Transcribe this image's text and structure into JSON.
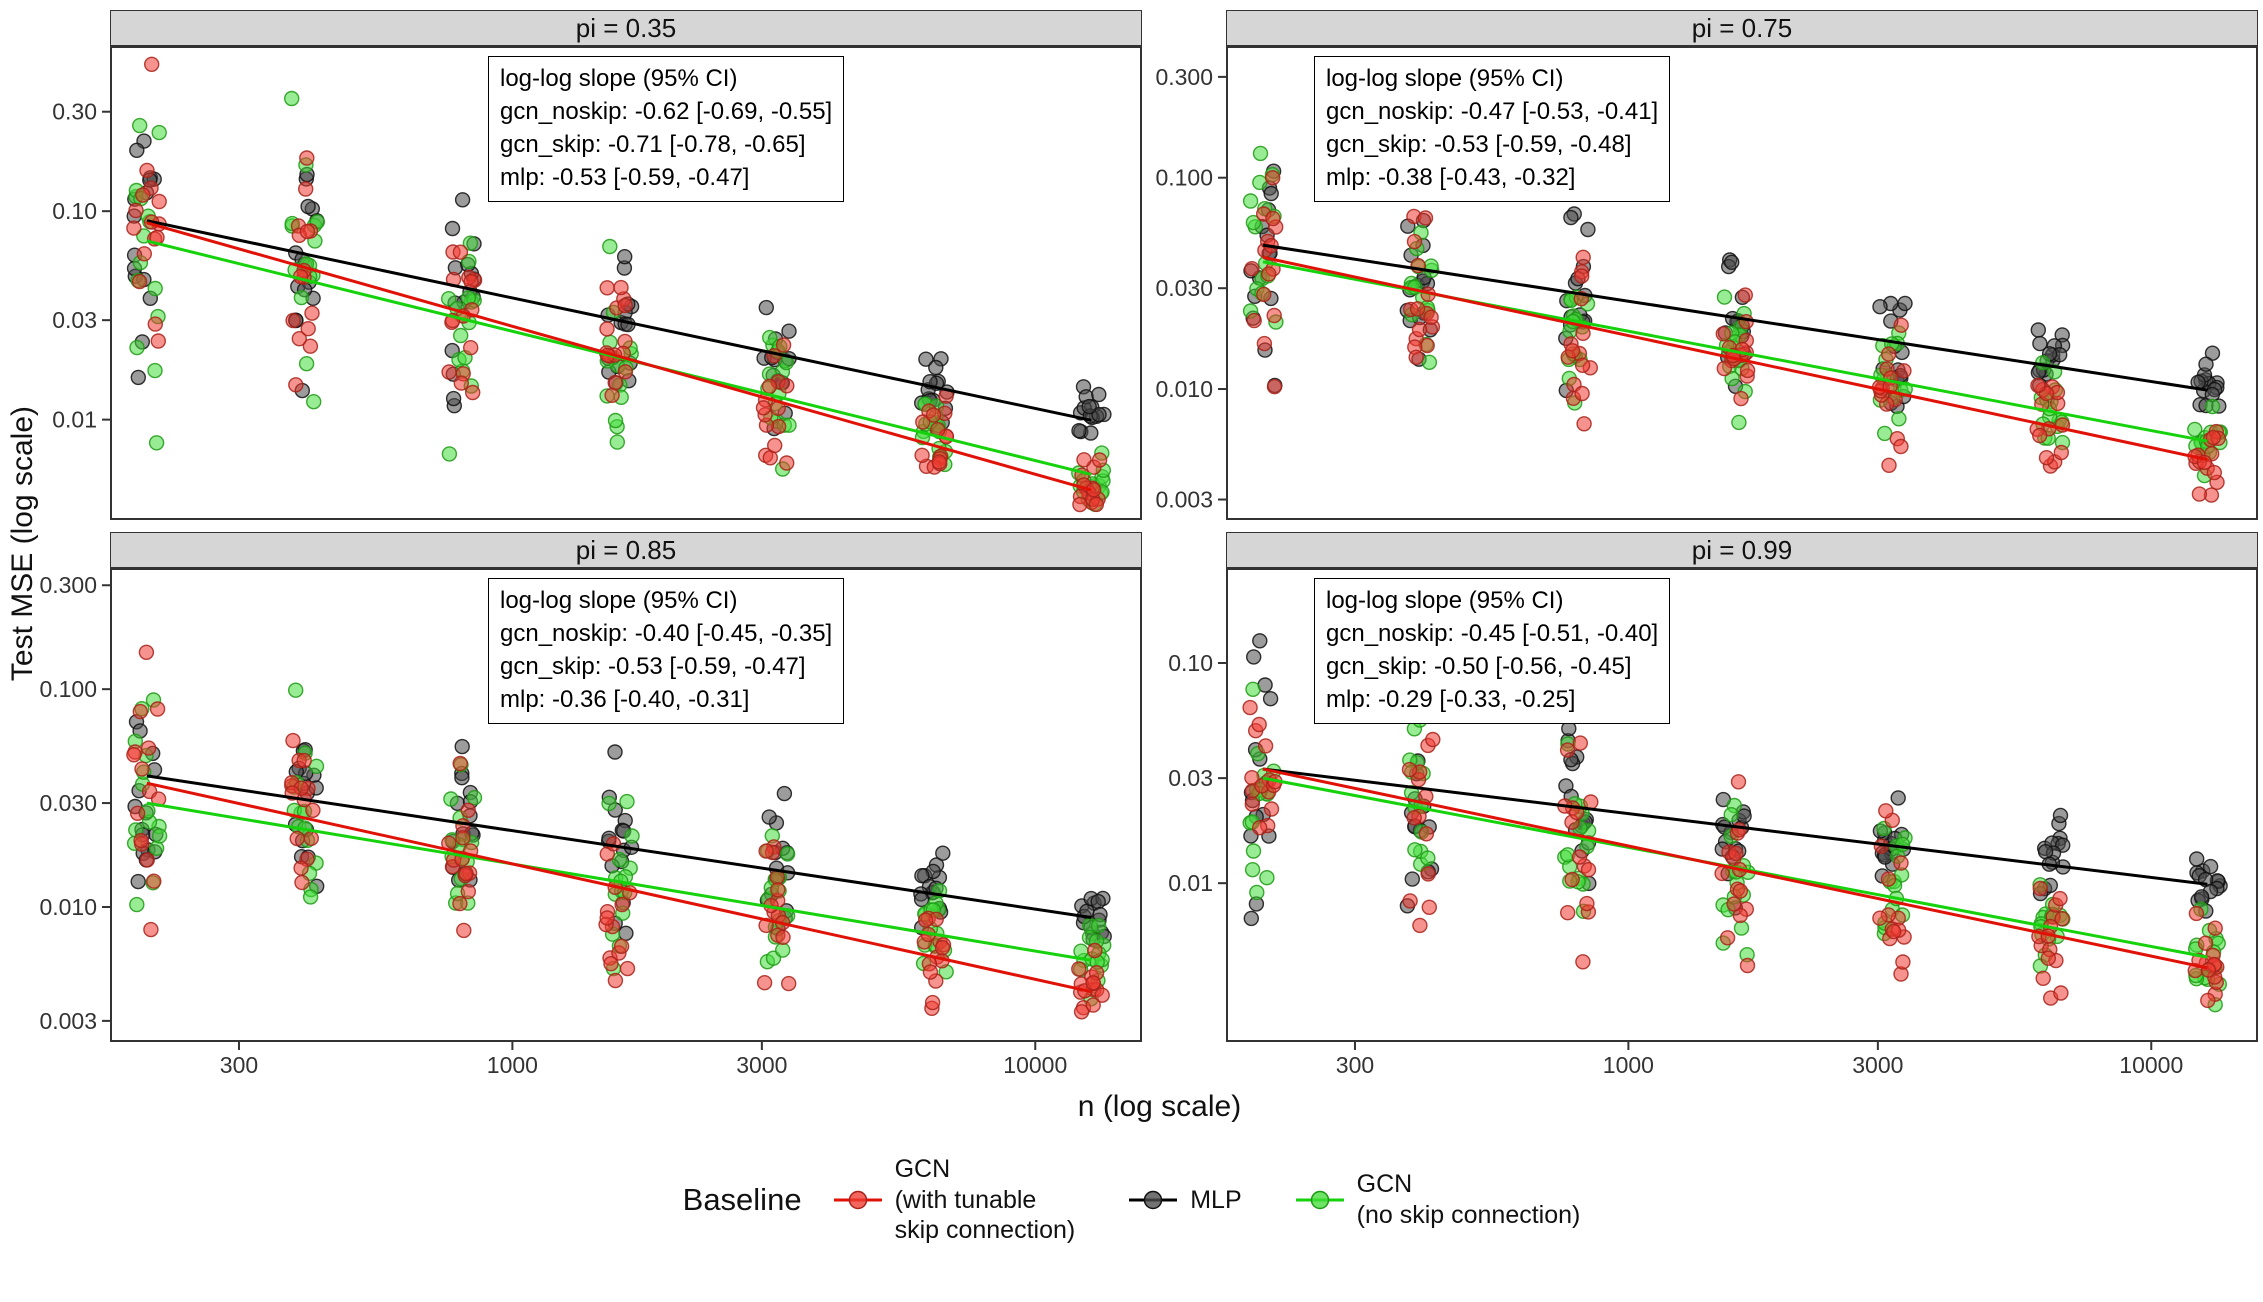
{
  "figure": {
    "background": "#ffffff",
    "legend": {
      "title": "Baseline",
      "entries": [
        {
          "key": "gcn_skip",
          "label": "GCN\n(with tunable\nskip connection)"
        },
        {
          "key": "mlp",
          "label": "MLP"
        },
        {
          "key": "gcn_noskip",
          "label": "GCN\n(no skip connection)"
        }
      ]
    },
    "series_styles": {
      "gcn_skip": {
        "fill": "#ee3b31",
        "stroke": "#a8221a",
        "line": "#e01207"
      },
      "mlp": {
        "fill": "#4a4a4a",
        "stroke": "#111111",
        "line": "#000000"
      },
      "gcn_noskip": {
        "fill": "#44dd3a",
        "stroke": "#1d9a14",
        "line": "#16d20c"
      }
    }
  },
  "chart_data": {
    "type": "scatter",
    "title": "",
    "xlabel": "n (log scale)",
    "ylabel": "Test MSE (log scale)",
    "x_scale": "log",
    "y_scale": "log",
    "x_range": [
      170,
      16000
    ],
    "x_ticks": [
      300,
      1000,
      3000,
      10000
    ],
    "x_tick_labels": [
      "300",
      "1000",
      "3000",
      "10000"
    ],
    "cluster_n": [
      200,
      400,
      800,
      1600,
      3200,
      6400,
      12800
    ],
    "points_per_cluster": 15,
    "series_keys": [
      "mlp",
      "gcn_noskip",
      "gcn_skip"
    ],
    "facets": [
      {
        "title": "pi = 0.35",
        "y_ticks": [
          0.3,
          0.1,
          0.03,
          0.01
        ],
        "y_tick_labels": [
          "0.30",
          "0.10",
          "0.03",
          "0.01"
        ],
        "y_range": [
          0.0033,
          0.62
        ],
        "annotation": [
          "log-log slope (95% CI)",
          "gcn_noskip: -0.62 [-0.69, -0.55]",
          "gcn_skip: -0.71 [-0.78, -0.65]",
          "mlp: -0.53 [-0.59, -0.47]"
        ],
        "series": [
          {
            "key": "mlp",
            "slope": -0.53,
            "slope_ci": [
              -0.59,
              -0.47
            ],
            "value_at_200": 0.09,
            "sd_start": 0.3,
            "sd_end": 0.07
          },
          {
            "key": "gcn_noskip",
            "slope": -0.62,
            "slope_ci": [
              -0.69,
              -0.55
            ],
            "value_at_200": 0.072,
            "sd_start": 0.32,
            "sd_end": 0.09
          },
          {
            "key": "gcn_skip",
            "slope": -0.71,
            "slope_ci": [
              -0.78,
              -0.65
            ],
            "value_at_200": 0.088,
            "sd_start": 0.33,
            "sd_end": 0.1
          }
        ]
      },
      {
        "title": "pi = 0.75",
        "y_ticks": [
          0.3,
          0.1,
          0.03,
          0.01,
          0.003
        ],
        "y_tick_labels": [
          "0.300",
          "0.100",
          "0.030",
          "0.010",
          "0.003"
        ],
        "y_range": [
          0.0024,
          0.42
        ],
        "annotation": [
          "log-log slope (95% CI)",
          "gcn_noskip: -0.47 [-0.53, -0.41]",
          "gcn_skip: -0.53 [-0.59, -0.48]",
          "mlp: -0.38 [-0.43, -0.32]"
        ],
        "series": [
          {
            "key": "mlp",
            "slope": -0.38,
            "slope_ci": [
              -0.43,
              -0.32
            ],
            "value_at_200": 0.048,
            "sd_start": 0.28,
            "sd_end": 0.06
          },
          {
            "key": "gcn_noskip",
            "slope": -0.47,
            "slope_ci": [
              -0.53,
              -0.41
            ],
            "value_at_200": 0.04,
            "sd_start": 0.28,
            "sd_end": 0.08
          },
          {
            "key": "gcn_skip",
            "slope": -0.53,
            "slope_ci": [
              -0.59,
              -0.48
            ],
            "value_at_200": 0.042,
            "sd_start": 0.3,
            "sd_end": 0.1
          }
        ]
      },
      {
        "title": "pi = 0.85",
        "y_ticks": [
          0.3,
          0.1,
          0.03,
          0.01,
          0.003
        ],
        "y_tick_labels": [
          "0.300",
          "0.100",
          "0.030",
          "0.010",
          "0.003"
        ],
        "y_range": [
          0.0024,
          0.36
        ],
        "annotation": [
          "log-log slope (95% CI)",
          "gcn_noskip: -0.40 [-0.45, -0.35]",
          "gcn_skip: -0.53 [-0.59, -0.47]",
          "mlp: -0.36 [-0.40, -0.31]"
        ],
        "series": [
          {
            "key": "mlp",
            "slope": -0.36,
            "slope_ci": [
              -0.4,
              -0.31
            ],
            "value_at_200": 0.04,
            "sd_start": 0.3,
            "sd_end": 0.06
          },
          {
            "key": "gcn_noskip",
            "slope": -0.4,
            "slope_ci": [
              -0.45,
              -0.35
            ],
            "value_at_200": 0.03,
            "sd_start": 0.28,
            "sd_end": 0.08
          },
          {
            "key": "gcn_skip",
            "slope": -0.53,
            "slope_ci": [
              -0.59,
              -0.47
            ],
            "value_at_200": 0.037,
            "sd_start": 0.31,
            "sd_end": 0.1
          }
        ]
      },
      {
        "title": "pi = 0.99",
        "y_ticks": [
          0.1,
          0.03,
          0.01
        ],
        "y_tick_labels": [
          "0.10",
          "0.03",
          "0.01"
        ],
        "y_range": [
          0.0019,
          0.27
        ],
        "annotation": [
          "log-log slope (95% CI)",
          "gcn_noskip: -0.45 [-0.51, -0.40]",
          "gcn_skip: -0.50 [-0.56, -0.45]",
          "mlp: -0.29 [-0.33, -0.25]"
        ],
        "series": [
          {
            "key": "mlp",
            "slope": -0.29,
            "slope_ci": [
              -0.33,
              -0.25
            ],
            "value_at_200": 0.033,
            "sd_start": 0.3,
            "sd_end": 0.06
          },
          {
            "key": "gcn_noskip",
            "slope": -0.45,
            "slope_ci": [
              -0.51,
              -0.4
            ],
            "value_at_200": 0.03,
            "sd_start": 0.3,
            "sd_end": 0.09
          },
          {
            "key": "gcn_skip",
            "slope": -0.5,
            "slope_ci": [
              -0.56,
              -0.45
            ],
            "value_at_200": 0.033,
            "sd_start": 0.32,
            "sd_end": 0.11
          }
        ]
      }
    ]
  }
}
